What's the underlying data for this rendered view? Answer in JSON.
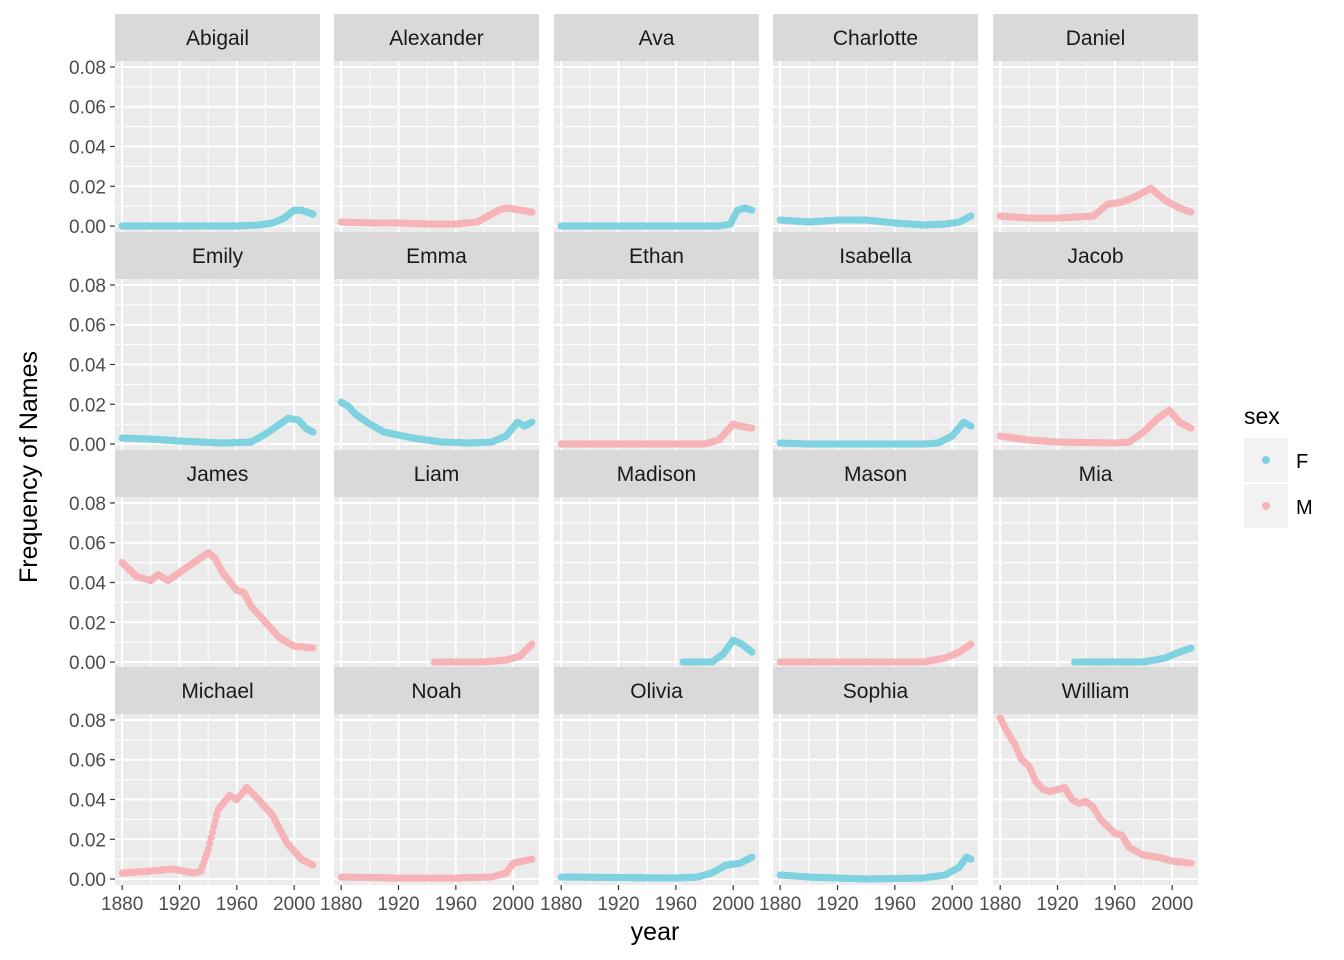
{
  "chart_data": {
    "type": "scatter",
    "layout": "facet-wrap",
    "facet_columns": 5,
    "xlabel": "year",
    "ylabel": "Frequency of Names",
    "xlim": [
      1875,
      2018
    ],
    "ylim": [
      -0.003,
      0.083
    ],
    "x_ticks": [
      1880,
      1920,
      1960,
      2000
    ],
    "y_ticks": [
      0.0,
      0.02,
      0.04,
      0.06,
      0.08
    ],
    "grid": true,
    "legend": {
      "title": "sex",
      "position": "right",
      "entries": [
        {
          "key": "F",
          "label": "F",
          "color": "#7fd2e0"
        },
        {
          "key": "M",
          "label": "M",
          "color": "#f6b3b8"
        }
      ]
    },
    "colors": {
      "panel_background": "#ebebeb",
      "grid": "#ffffff",
      "strip_background": "#d9d9d9",
      "legend_key_background": "#f2f2f2"
    },
    "facets": [
      {
        "name": "Abigail",
        "sex": "F",
        "points": [
          [
            1880,
            0.0
          ],
          [
            1960,
            0.0
          ],
          [
            1975,
            0.0005
          ],
          [
            1985,
            0.0015
          ],
          [
            1993,
            0.004
          ],
          [
            2000,
            0.008
          ],
          [
            2005,
            0.008
          ],
          [
            2013,
            0.006
          ]
        ]
      },
      {
        "name": "Alexander",
        "sex": "M",
        "points": [
          [
            1880,
            0.002
          ],
          [
            1900,
            0.0015
          ],
          [
            1920,
            0.0015
          ],
          [
            1940,
            0.001
          ],
          [
            1960,
            0.001
          ],
          [
            1975,
            0.002
          ],
          [
            1990,
            0.008
          ],
          [
            1995,
            0.009
          ],
          [
            2005,
            0.008
          ],
          [
            2013,
            0.007
          ]
        ]
      },
      {
        "name": "Ava",
        "sex": "F",
        "points": [
          [
            1880,
            0.0
          ],
          [
            1990,
            0.0
          ],
          [
            1998,
            0.001
          ],
          [
            2003,
            0.008
          ],
          [
            2008,
            0.009
          ],
          [
            2013,
            0.008
          ]
        ]
      },
      {
        "name": "Charlotte",
        "sex": "F",
        "points": [
          [
            1880,
            0.003
          ],
          [
            1900,
            0.002
          ],
          [
            1920,
            0.003
          ],
          [
            1940,
            0.003
          ],
          [
            1960,
            0.0015
          ],
          [
            1980,
            0.0005
          ],
          [
            1995,
            0.001
          ],
          [
            2005,
            0.002
          ],
          [
            2013,
            0.005
          ]
        ]
      },
      {
        "name": "Daniel",
        "sex": "M",
        "points": [
          [
            1880,
            0.005
          ],
          [
            1900,
            0.004
          ],
          [
            1920,
            0.004
          ],
          [
            1945,
            0.005
          ],
          [
            1955,
            0.011
          ],
          [
            1965,
            0.012
          ],
          [
            1975,
            0.015
          ],
          [
            1985,
            0.019
          ],
          [
            1995,
            0.013
          ],
          [
            2005,
            0.009
          ],
          [
            2013,
            0.007
          ]
        ]
      },
      {
        "name": "Emily",
        "sex": "F",
        "points": [
          [
            1880,
            0.003
          ],
          [
            1900,
            0.0025
          ],
          [
            1920,
            0.0015
          ],
          [
            1950,
            0.0005
          ],
          [
            1970,
            0.001
          ],
          [
            1980,
            0.005
          ],
          [
            1990,
            0.01
          ],
          [
            1996,
            0.013
          ],
          [
            2003,
            0.012
          ],
          [
            2008,
            0.008
          ],
          [
            2013,
            0.006
          ]
        ]
      },
      {
        "name": "Emma",
        "sex": "F",
        "points": [
          [
            1880,
            0.021
          ],
          [
            1885,
            0.019
          ],
          [
            1890,
            0.015
          ],
          [
            1900,
            0.01
          ],
          [
            1910,
            0.006
          ],
          [
            1930,
            0.003
          ],
          [
            1950,
            0.001
          ],
          [
            1970,
            0.0005
          ],
          [
            1985,
            0.001
          ],
          [
            1995,
            0.004
          ],
          [
            2003,
            0.011
          ],
          [
            2008,
            0.009
          ],
          [
            2013,
            0.011
          ]
        ]
      },
      {
        "name": "Ethan",
        "sex": "M",
        "points": [
          [
            1880,
            0.0
          ],
          [
            1980,
            0.0
          ],
          [
            1990,
            0.002
          ],
          [
            2000,
            0.01
          ],
          [
            2005,
            0.009
          ],
          [
            2013,
            0.008
          ]
        ]
      },
      {
        "name": "Isabella",
        "sex": "F",
        "points": [
          [
            1880,
            0.0005
          ],
          [
            1900,
            0.0
          ],
          [
            1980,
            0.0
          ],
          [
            1990,
            0.0005
          ],
          [
            2000,
            0.004
          ],
          [
            2008,
            0.011
          ],
          [
            2013,
            0.009
          ]
        ]
      },
      {
        "name": "Jacob",
        "sex": "M",
        "points": [
          [
            1880,
            0.004
          ],
          [
            1900,
            0.002
          ],
          [
            1920,
            0.001
          ],
          [
            1960,
            0.0005
          ],
          [
            1970,
            0.001
          ],
          [
            1980,
            0.006
          ],
          [
            1990,
            0.013
          ],
          [
            1998,
            0.017
          ],
          [
            2005,
            0.011
          ],
          [
            2013,
            0.008
          ]
        ]
      },
      {
        "name": "James",
        "sex": "M",
        "points": [
          [
            1880,
            0.05
          ],
          [
            1890,
            0.043
          ],
          [
            1900,
            0.041
          ],
          [
            1905,
            0.044
          ],
          [
            1912,
            0.041
          ],
          [
            1920,
            0.045
          ],
          [
            1930,
            0.05
          ],
          [
            1940,
            0.055
          ],
          [
            1945,
            0.052
          ],
          [
            1950,
            0.045
          ],
          [
            1960,
            0.036
          ],
          [
            1965,
            0.035
          ],
          [
            1970,
            0.028
          ],
          [
            1980,
            0.02
          ],
          [
            1990,
            0.012
          ],
          [
            2000,
            0.008
          ],
          [
            2013,
            0.007
          ]
        ]
      },
      {
        "name": "Liam",
        "sex": "M",
        "points": [
          [
            1945,
            0.0
          ],
          [
            1980,
            0.0
          ],
          [
            1995,
            0.001
          ],
          [
            2005,
            0.003
          ],
          [
            2013,
            0.009
          ]
        ]
      },
      {
        "name": "Madison",
        "sex": "F",
        "points": [
          [
            1965,
            0.0
          ],
          [
            1985,
            0.0
          ],
          [
            1993,
            0.004
          ],
          [
            2000,
            0.011
          ],
          [
            2006,
            0.009
          ],
          [
            2013,
            0.005
          ]
        ]
      },
      {
        "name": "Mason",
        "sex": "M",
        "points": [
          [
            1880,
            0.0
          ],
          [
            1980,
            0.0
          ],
          [
            1995,
            0.002
          ],
          [
            2005,
            0.005
          ],
          [
            2013,
            0.009
          ]
        ]
      },
      {
        "name": "Mia",
        "sex": "F",
        "points": [
          [
            1932,
            0.0
          ],
          [
            1980,
            0.0
          ],
          [
            1995,
            0.002
          ],
          [
            2005,
            0.005
          ],
          [
            2013,
            0.007
          ]
        ]
      },
      {
        "name": "Michael",
        "sex": "M",
        "points": [
          [
            1880,
            0.003
          ],
          [
            1900,
            0.004
          ],
          [
            1915,
            0.005
          ],
          [
            1930,
            0.003
          ],
          [
            1935,
            0.004
          ],
          [
            1940,
            0.015
          ],
          [
            1947,
            0.035
          ],
          [
            1955,
            0.042
          ],
          [
            1960,
            0.04
          ],
          [
            1967,
            0.046
          ],
          [
            1975,
            0.04
          ],
          [
            1985,
            0.032
          ],
          [
            1995,
            0.018
          ],
          [
            2005,
            0.01
          ],
          [
            2013,
            0.007
          ]
        ]
      },
      {
        "name": "Noah",
        "sex": "M",
        "points": [
          [
            1880,
            0.001
          ],
          [
            1920,
            0.0005
          ],
          [
            1960,
            0.0005
          ],
          [
            1985,
            0.001
          ],
          [
            1995,
            0.003
          ],
          [
            2000,
            0.008
          ],
          [
            2013,
            0.01
          ]
        ]
      },
      {
        "name": "Olivia",
        "sex": "F",
        "points": [
          [
            1880,
            0.001
          ],
          [
            1960,
            0.0005
          ],
          [
            1975,
            0.001
          ],
          [
            1985,
            0.003
          ],
          [
            1995,
            0.007
          ],
          [
            2005,
            0.008
          ],
          [
            2013,
            0.011
          ]
        ]
      },
      {
        "name": "Sophia",
        "sex": "F",
        "points": [
          [
            1880,
            0.002
          ],
          [
            1900,
            0.001
          ],
          [
            1940,
            0.0
          ],
          [
            1980,
            0.0005
          ],
          [
            1995,
            0.002
          ],
          [
            2005,
            0.006
          ],
          [
            2010,
            0.011
          ],
          [
            2013,
            0.01
          ]
        ]
      },
      {
        "name": "William",
        "sex": "M",
        "points": [
          [
            1880,
            0.081
          ],
          [
            1885,
            0.074
          ],
          [
            1890,
            0.068
          ],
          [
            1895,
            0.06
          ],
          [
            1900,
            0.057
          ],
          [
            1905,
            0.049
          ],
          [
            1910,
            0.045
          ],
          [
            1915,
            0.044
          ],
          [
            1925,
            0.046
          ],
          [
            1930,
            0.04
          ],
          [
            1935,
            0.038
          ],
          [
            1940,
            0.039
          ],
          [
            1945,
            0.036
          ],
          [
            1950,
            0.03
          ],
          [
            1960,
            0.023
          ],
          [
            1965,
            0.022
          ],
          [
            1970,
            0.016
          ],
          [
            1980,
            0.012
          ],
          [
            1990,
            0.011
          ],
          [
            2000,
            0.009
          ],
          [
            2013,
            0.008
          ]
        ]
      }
    ]
  }
}
